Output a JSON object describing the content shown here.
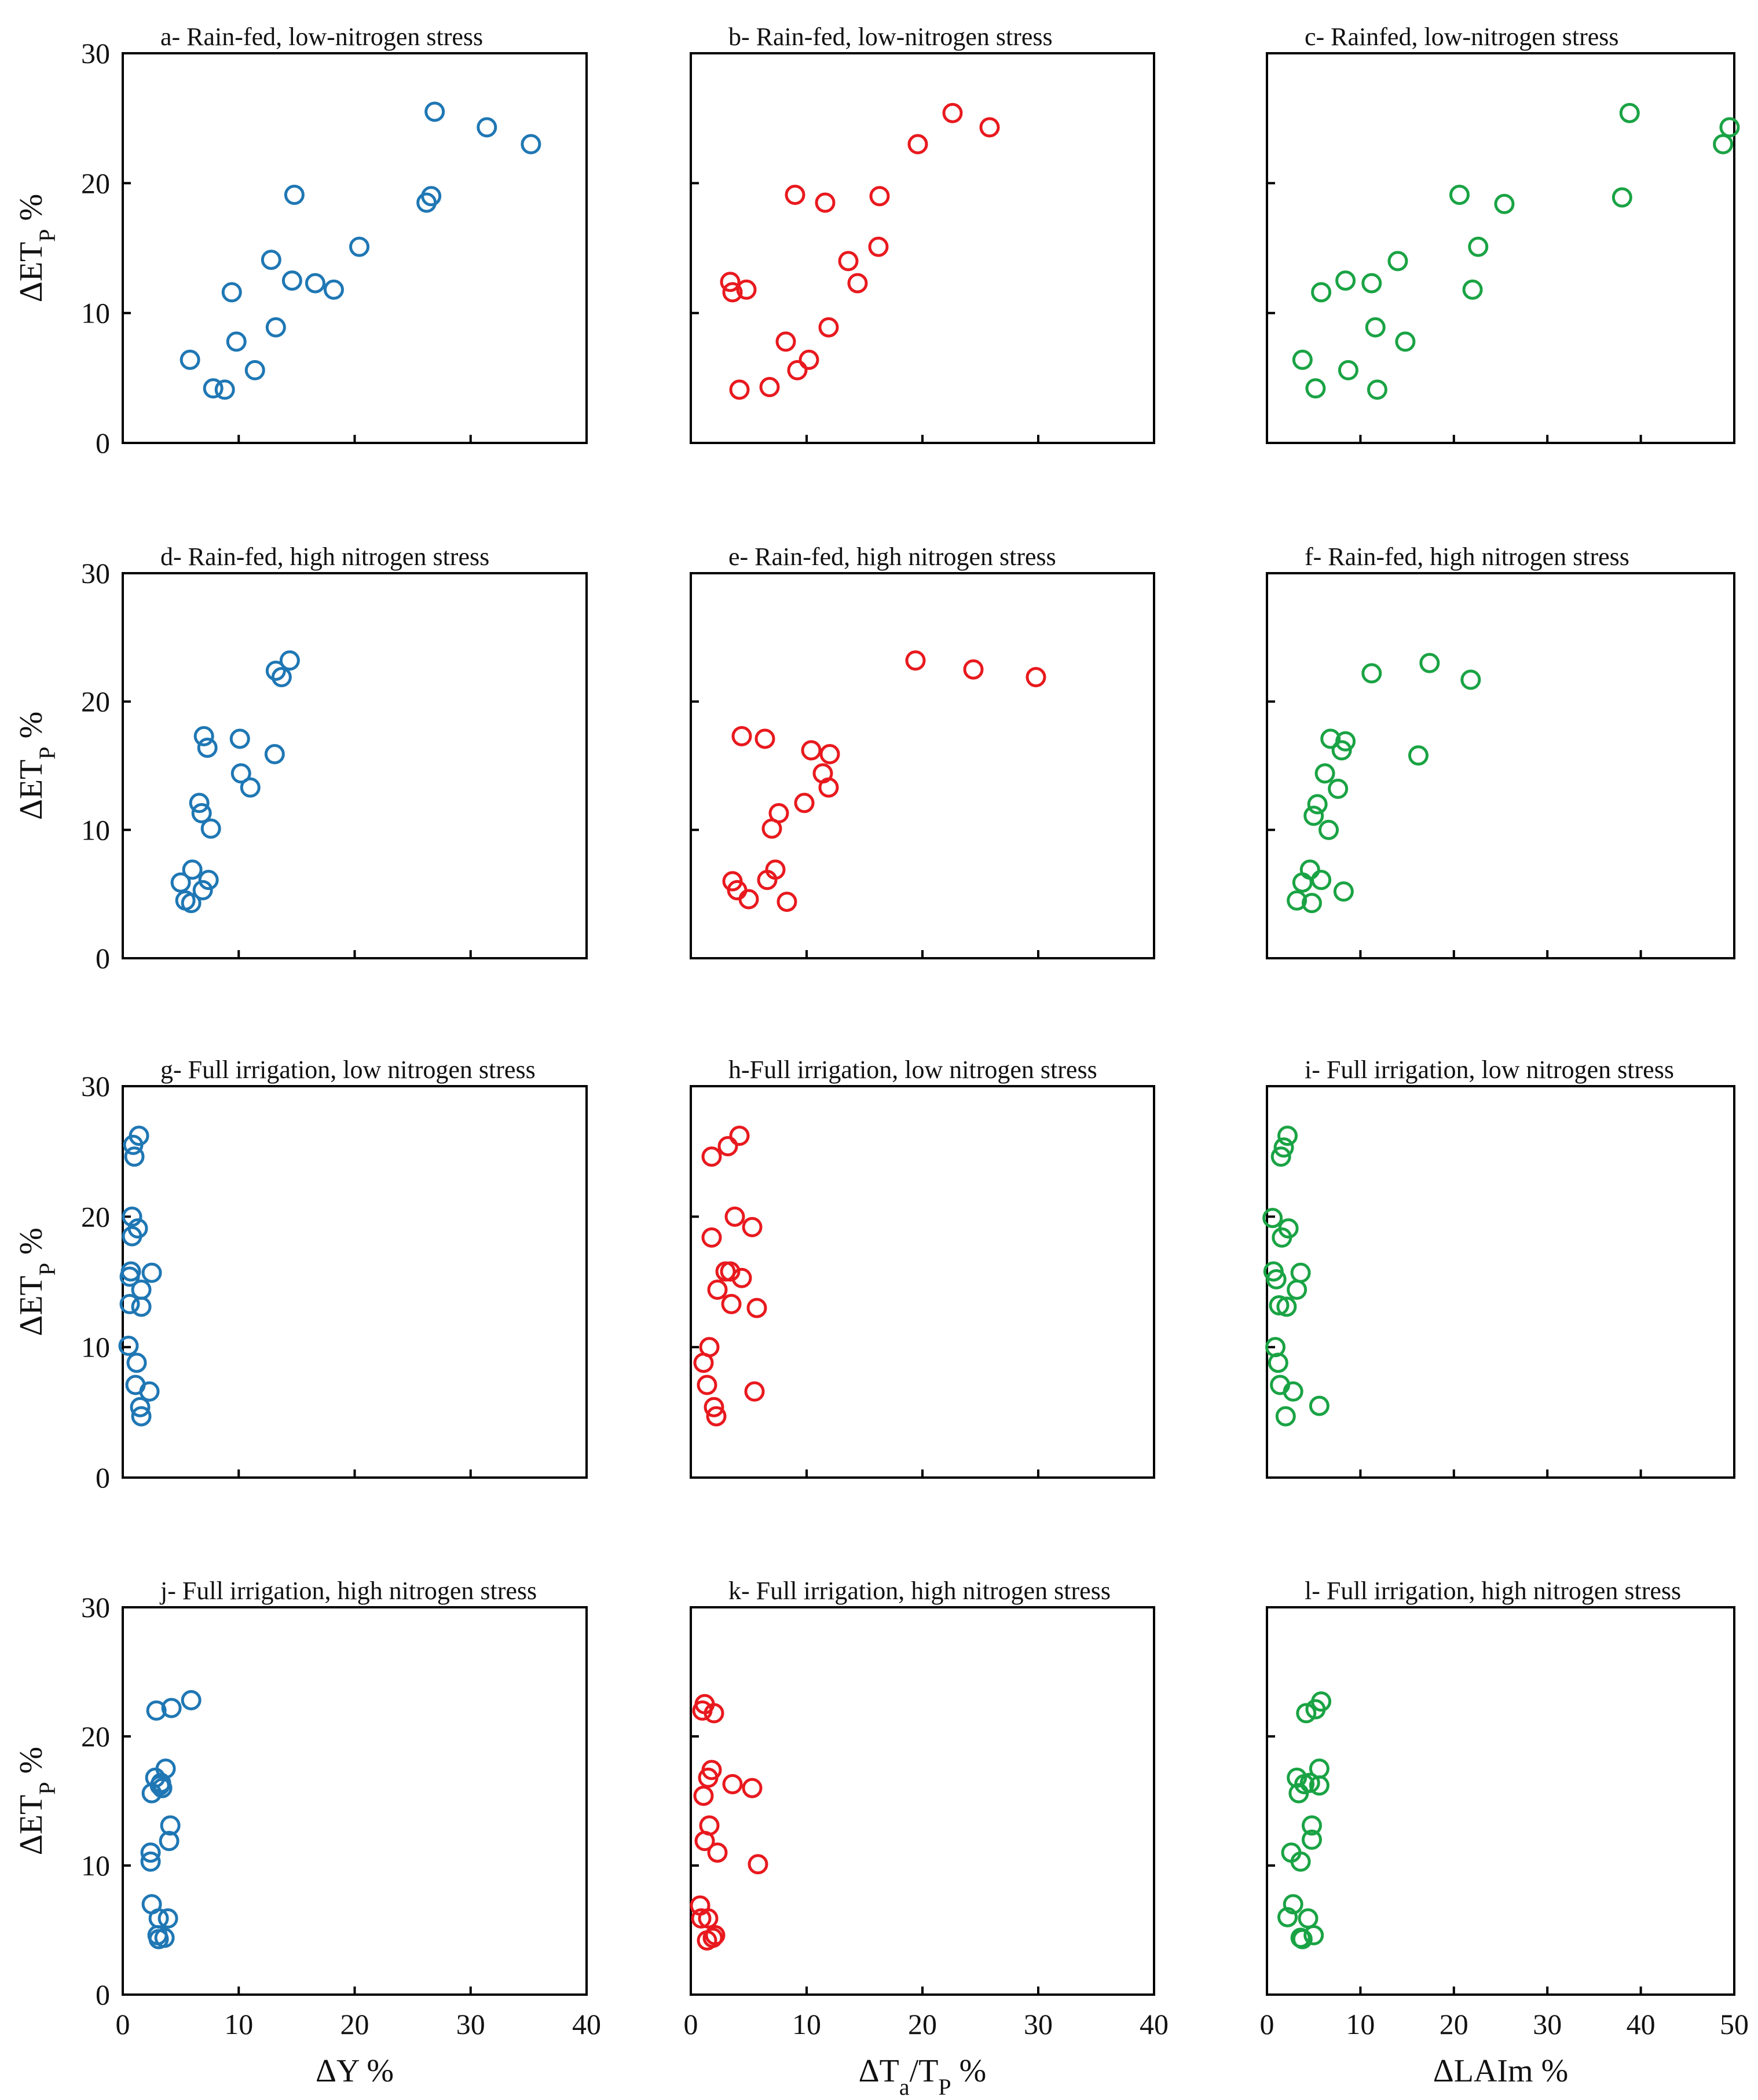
{
  "chart_data": [
    {
      "id": "a",
      "type": "scatter",
      "title": "a- Rain-fed, low-nitrogen stress",
      "color": "#1f77b4",
      "xlim": [
        0,
        40
      ],
      "ylim": [
        0,
        30
      ],
      "xticks": [],
      "yticks": [
        "0",
        "10",
        "20",
        "30"
      ],
      "ylabel": "ΔET",
      "ylabel_sub": "P",
      "ylabel_suffix": " %",
      "xlabel": "",
      "x": [
        5.8,
        7.8,
        8.8,
        9.4,
        9.8,
        11.4,
        12.8,
        13.2,
        14.8,
        14.6,
        16.6,
        18.2,
        20.4,
        26.2,
        26.6,
        26.9,
        31.4,
        35.2
      ],
      "y": [
        6.4,
        4.2,
        4.1,
        11.6,
        7.8,
        5.6,
        14.1,
        8.9,
        19.1,
        12.5,
        12.3,
        11.8,
        15.1,
        18.5,
        19.0,
        25.5,
        24.3,
        23.0
      ]
    },
    {
      "id": "b",
      "type": "scatter",
      "title": "b- Rain-fed, low-nitrogen stress",
      "color": "#e8191e",
      "xlim": [
        0,
        40
      ],
      "ylim": [
        0,
        30
      ],
      "xticks": [],
      "yticks": [],
      "ylabel": "",
      "xlabel": "",
      "x": [
        3.4,
        3.6,
        4.2,
        4.8,
        6.8,
        8.2,
        9.2,
        9.0,
        10.2,
        11.6,
        11.9,
        13.6,
        14.4,
        16.2,
        16.3,
        19.6,
        22.6,
        25.8
      ],
      "y": [
        12.4,
        11.6,
        4.1,
        11.8,
        4.3,
        7.8,
        5.6,
        19.1,
        6.4,
        18.5,
        8.9,
        14.0,
        12.3,
        15.1,
        19.0,
        23.0,
        25.4,
        24.3
      ]
    },
    {
      "id": "c",
      "type": "scatter",
      "title": "c- Rainfed, low-nitrogen stress",
      "color": "#1aa344",
      "xlim": [
        0,
        50
      ],
      "ylim": [
        0,
        30
      ],
      "xticks": [],
      "yticks": [],
      "ylabel": "",
      "xlabel": "",
      "x": [
        3.8,
        5.2,
        5.8,
        8.4,
        8.7,
        11.2,
        11.6,
        11.8,
        14.0,
        14.8,
        20.6,
        22.0,
        22.6,
        25.4,
        38.0,
        38.8,
        48.8,
        49.5
      ],
      "y": [
        6.4,
        4.2,
        11.6,
        12.5,
        5.6,
        12.3,
        8.9,
        4.1,
        14.0,
        7.8,
        19.1,
        11.8,
        15.1,
        18.4,
        18.9,
        25.4,
        23.0,
        24.3
      ]
    },
    {
      "id": "d",
      "type": "scatter",
      "title": "d- Rain-fed, high nitrogen stress",
      "color": "#1f77b4",
      "xlim": [
        0,
        40
      ],
      "ylim": [
        0,
        30
      ],
      "xticks": [],
      "yticks": [
        "0",
        "10",
        "20",
        "30"
      ],
      "ylabel": "ΔET",
      "ylabel_sub": "P",
      "ylabel_suffix": " %",
      "xlabel": "",
      "x": [
        5.0,
        5.4,
        5.9,
        6.0,
        6.6,
        6.8,
        6.9,
        7.0,
        7.3,
        7.4,
        7.6,
        10.1,
        10.2,
        11.0,
        13.1,
        13.2,
        13.7,
        14.4
      ],
      "y": [
        5.9,
        4.5,
        4.3,
        6.9,
        12.1,
        11.3,
        5.3,
        17.3,
        16.4,
        6.1,
        10.1,
        17.1,
        14.4,
        13.3,
        15.9,
        22.4,
        21.9,
        23.2
      ]
    },
    {
      "id": "e",
      "type": "scatter",
      "title": "e- Rain-fed, high nitrogen stress",
      "color": "#e8191e",
      "xlim": [
        0,
        40
      ],
      "ylim": [
        0,
        30
      ],
      "xticks": [],
      "yticks": [],
      "ylabel": "",
      "xlabel": "",
      "x": [
        3.6,
        4.0,
        4.4,
        5.0,
        6.4,
        6.6,
        7.0,
        7.3,
        7.6,
        8.3,
        9.8,
        10.4,
        11.4,
        11.9,
        12.0,
        19.4,
        24.4,
        29.8
      ],
      "y": [
        6.0,
        5.3,
        17.3,
        4.6,
        17.1,
        6.1,
        10.1,
        6.9,
        11.3,
        4.4,
        12.1,
        16.2,
        14.4,
        13.3,
        15.9,
        23.2,
        22.5,
        21.9
      ]
    },
    {
      "id": "f",
      "type": "scatter",
      "title": "f- Rain-fed, high nitrogen stress",
      "color": "#1aa344",
      "xlim": [
        0,
        50
      ],
      "ylim": [
        0,
        30
      ],
      "xticks": [],
      "yticks": [],
      "ylabel": "",
      "xlabel": "",
      "x": [
        3.2,
        3.8,
        4.6,
        4.8,
        5.0,
        5.4,
        5.8,
        6.2,
        6.6,
        6.8,
        7.6,
        8.0,
        8.2,
        8.4,
        11.2,
        16.2,
        17.4,
        21.8
      ],
      "y": [
        4.5,
        5.9,
        6.9,
        4.3,
        11.1,
        12.0,
        6.1,
        14.4,
        10.0,
        17.1,
        13.2,
        16.2,
        5.2,
        16.9,
        22.2,
        15.8,
        23.0,
        21.7
      ]
    },
    {
      "id": "g",
      "type": "scatter",
      "title": "g- Full irrigation, low nitrogen stress",
      "color": "#1f77b4",
      "xlim": [
        0,
        40
      ],
      "ylim": [
        0,
        30
      ],
      "xticks": [],
      "yticks": [
        "0",
        "10",
        "20",
        "30"
      ],
      "ylabel": "ΔET",
      "ylabel_sub": "P",
      "ylabel_suffix": " %",
      "xlabel": "",
      "x": [
        0.5,
        0.6,
        0.6,
        0.7,
        0.8,
        0.8,
        0.9,
        1.0,
        1.1,
        1.2,
        1.3,
        1.4,
        1.5,
        1.6,
        1.6,
        1.6,
        2.3,
        2.5
      ],
      "y": [
        10.1,
        13.3,
        15.4,
        15.8,
        18.5,
        20.0,
        25.5,
        24.6,
        7.1,
        8.8,
        19.1,
        26.2,
        5.4,
        14.4,
        13.1,
        4.7,
        6.6,
        15.7
      ]
    },
    {
      "id": "h",
      "type": "scatter",
      "title": "h-Full irrigation, low nitrogen stress",
      "color": "#e8191e",
      "xlim": [
        0,
        40
      ],
      "ylim": [
        0,
        30
      ],
      "xticks": [],
      "yticks": [],
      "ylabel": "",
      "xlabel": "",
      "x": [
        1.1,
        1.4,
        1.6,
        1.8,
        1.8,
        2.0,
        2.2,
        2.3,
        3.0,
        3.2,
        3.4,
        3.5,
        3.8,
        4.2,
        4.4,
        5.3,
        5.5,
        5.7
      ],
      "y": [
        8.8,
        7.1,
        10.0,
        18.4,
        24.6,
        5.4,
        4.7,
        14.4,
        15.8,
        25.4,
        15.8,
        13.3,
        20.0,
        26.2,
        15.3,
        19.2,
        6.6,
        13.0
      ]
    },
    {
      "id": "i",
      "type": "scatter",
      "title": "i- Full irrigation, low nitrogen stress",
      "color": "#1aa344",
      "xlim": [
        0,
        50
      ],
      "ylim": [
        0,
        30
      ],
      "xticks": [],
      "yticks": [],
      "ylabel": "",
      "xlabel": "",
      "x": [
        0.6,
        0.7,
        0.9,
        1.0,
        1.2,
        1.3,
        1.4,
        1.5,
        1.6,
        1.8,
        2.0,
        2.1,
        2.2,
        2.3,
        2.8,
        3.2,
        3.6,
        5.6
      ],
      "y": [
        19.9,
        15.8,
        10.0,
        15.2,
        8.8,
        13.2,
        7.1,
        24.6,
        18.4,
        25.3,
        4.7,
        13.1,
        26.2,
        19.1,
        6.6,
        14.4,
        15.7,
        5.5
      ]
    },
    {
      "id": "j",
      "type": "scatter",
      "title": "j- Full irrigation, high nitrogen stress",
      "color": "#1f77b4",
      "xlim": [
        0,
        40
      ],
      "ylim": [
        0,
        30
      ],
      "xticks": [
        "0",
        "10",
        "20",
        "30",
        "40"
      ],
      "yticks": [
        "0",
        "10",
        "20",
        "30"
      ],
      "ylabel": "ΔET",
      "ylabel_sub": "P",
      "ylabel_suffix": " %",
      "xlabel": "ΔY %",
      "x": [
        2.4,
        2.4,
        2.5,
        2.5,
        2.8,
        2.9,
        3.0,
        3.1,
        3.1,
        3.2,
        3.3,
        3.4,
        3.6,
        3.7,
        3.9,
        4.0,
        4.1,
        4.2,
        5.9
      ],
      "y": [
        10.3,
        11.0,
        15.6,
        7.0,
        16.8,
        22.0,
        4.6,
        4.3,
        5.9,
        16.2,
        16.4,
        16.0,
        4.4,
        17.5,
        5.9,
        11.9,
        13.1,
        22.2,
        22.8
      ]
    },
    {
      "id": "k",
      "type": "scatter",
      "title": "k- Full irrigation, high nitrogen stress",
      "color": "#e8191e",
      "xlim": [
        0,
        40
      ],
      "ylim": [
        0,
        30
      ],
      "xticks": [
        "0",
        "10",
        "20",
        "30",
        "40"
      ],
      "yticks": [],
      "ylabel": "",
      "xlabel": "ΔT",
      "xlabel_sub": "a",
      "xlabel_mid": "/T",
      "xlabel_sub2": "P",
      "xlabel_suffix": " %",
      "x": [
        0.8,
        0.9,
        1.0,
        1.1,
        1.2,
        1.2,
        1.4,
        1.5,
        1.5,
        1.6,
        1.8,
        1.9,
        2.0,
        2.1,
        2.3,
        3.6,
        5.3,
        5.8
      ],
      "y": [
        6.9,
        5.9,
        22.0,
        15.4,
        22.5,
        11.9,
        4.2,
        16.8,
        5.9,
        13.1,
        17.4,
        4.4,
        21.8,
        4.6,
        11.0,
        16.3,
        16.0,
        10.1
      ]
    },
    {
      "id": "l",
      "type": "scatter",
      "title": "l- Full irrigation, high nitrogen stress",
      "color": "#1aa344",
      "xlim": [
        0,
        50
      ],
      "ylim": [
        0,
        30
      ],
      "xticks": [
        "0",
        "10",
        "20",
        "30",
        "40",
        "50"
      ],
      "yticks": [],
      "ylabel": "",
      "xlabel": "ΔLAIm %",
      "x": [
        2.2,
        2.6,
        2.8,
        3.2,
        3.4,
        3.6,
        3.6,
        3.8,
        4.0,
        4.2,
        4.4,
        4.6,
        4.8,
        4.8,
        5.0,
        5.2,
        5.6,
        5.6,
        5.8
      ],
      "y": [
        6.0,
        11.0,
        7.0,
        16.8,
        15.6,
        10.3,
        4.4,
        4.3,
        16.3,
        21.8,
        5.9,
        16.4,
        12.0,
        13.1,
        4.6,
        22.1,
        16.2,
        17.5,
        22.7
      ]
    }
  ]
}
